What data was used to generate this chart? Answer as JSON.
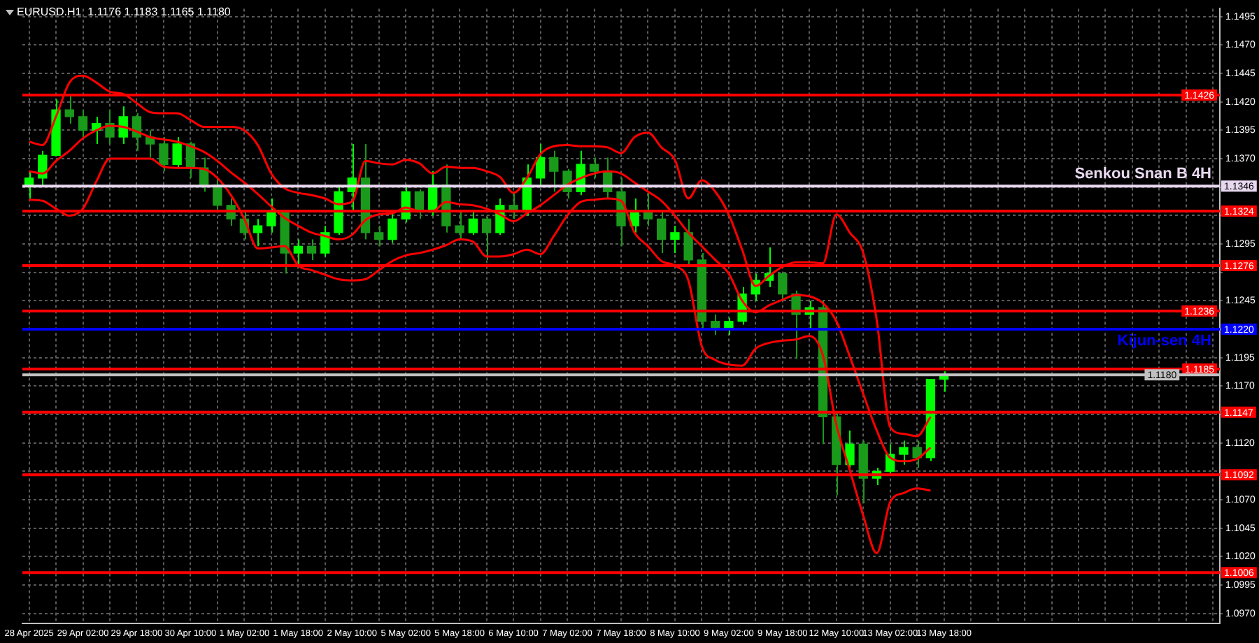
{
  "chart_data": {
    "type": "candlestick",
    "title": "EURUSD.H1  1.1176 1.1183 1.1165 1.1180",
    "colors": [
      "#00ff00",
      "#00ff00",
      "#00ff00",
      "#1a9a1a",
      "#1a9a1a",
      "#00ff00",
      "#1a9a1a",
      "#00ff00",
      "#1a9a1a",
      "#1a9a1a",
      "#1a9a1a",
      "#00ff00",
      "#1a9a1a",
      "#1a9a1a",
      "#1a9a1a",
      "#1a9a1a",
      "#1a9a1a",
      "#00ff00",
      "#00ff00",
      "#1a9a1a",
      "#00ff00",
      "#1a9a1a",
      "#00ff00",
      "#00ff00",
      "#00ff00",
      "#1a9a1a",
      "#1a9a1a",
      "#00ff00",
      "#00ff00",
      "#1a9a1a",
      "#00ff00",
      "#1a9a1a",
      "#1a9a1a",
      "#00ff00",
      "#1a9a1a",
      "#00ff00",
      "#1a9a1a",
      "#00ff00",
      "#00ff00",
      "#1a9a1a",
      "#1a9a1a",
      "#00ff00",
      "#1a9a1a",
      "#1a9a1a",
      "#1a9a1a",
      "#00ff00",
      "#1a9a1a",
      "#1a9a1a",
      "#00ff00",
      "#1a9a1a",
      "#1a9a1a",
      "#1a9a1a",
      "#00ff00",
      "#00ff00",
      "#00ff00",
      "#00ff00",
      "#1a9a1a",
      "#1a9a1a",
      "#00ff00",
      "#1a9a1a",
      "#1a9a1a",
      "#00ff00",
      "#1a9a1a",
      "#00ff00",
      "#00ff00",
      "#00ff00",
      "#1a9a1a",
      "#00ff00",
      "#00ff00",
      null,
      null,
      null,
      null,
      null,
      null,
      null,
      null,
      null,
      null,
      null,
      null,
      null,
      null,
      null,
      null,
      null,
      null,
      null,
      null
    ],
    "categories": [
      "28 Apr 2025",
      null,
      null,
      null,
      "29 Apr 02:00",
      null,
      null,
      null,
      "29 Apr 18:00",
      null,
      null,
      null,
      "30 Apr 10:00",
      null,
      null,
      null,
      "1 May 02:00",
      null,
      null,
      null,
      "1 May 18:00",
      null,
      null,
      null,
      "2 May 10:00",
      null,
      null,
      null,
      "5 May 02:00",
      null,
      null,
      null,
      "5 May 18:00",
      null,
      null,
      null,
      "6 May 10:00",
      null,
      null,
      null,
      "7 May 02:00",
      null,
      null,
      null,
      "7 May 18:00",
      null,
      null,
      null,
      "8 May 10:00",
      null,
      null,
      null,
      "9 May 02:00",
      null,
      null,
      null,
      "9 May 18:00",
      null,
      null,
      null,
      "12 May 10:00",
      null,
      null,
      null,
      "13 May 02:00",
      null,
      null,
      null,
      "13 May 18:00",
      null,
      null,
      null,
      null,
      null,
      null,
      null,
      null,
      null,
      null,
      null,
      null,
      null,
      null,
      null,
      null,
      null,
      null,
      null,
      null
    ],
    "ohlc": [
      [
        1.1347,
        1.1359,
        1.1335,
        1.1353
      ],
      [
        1.1353,
        1.1377,
        1.1347,
        1.1373
      ],
      [
        1.1373,
        1.1422,
        1.1373,
        1.1413
      ],
      [
        1.1413,
        1.1425,
        1.1401,
        1.1407
      ],
      [
        1.1407,
        1.1413,
        1.1389,
        1.1395
      ],
      [
        1.1395,
        1.1407,
        1.1383,
        1.1401
      ],
      [
        1.1401,
        1.1413,
        1.1383,
        1.1389
      ],
      [
        1.1389,
        1.1416,
        1.1383,
        1.1407
      ],
      [
        1.1407,
        1.141,
        1.1377,
        1.1389
      ],
      [
        1.1389,
        1.1395,
        1.1371,
        1.1383
      ],
      [
        1.1383,
        1.1389,
        1.1359,
        1.1365
      ],
      [
        1.1365,
        1.1389,
        1.1362,
        1.1383
      ],
      [
        1.1383,
        1.1385,
        1.1353,
        1.1362
      ],
      [
        1.1362,
        1.1371,
        1.1341,
        1.1347
      ],
      [
        1.1347,
        1.1353,
        1.1323,
        1.1329
      ],
      [
        1.1329,
        1.1335,
        1.1311,
        1.1317
      ],
      [
        1.1317,
        1.1323,
        1.1299,
        1.1305
      ],
      [
        1.1305,
        1.1317,
        1.1293,
        1.1311
      ],
      [
        1.1311,
        1.1335,
        1.1305,
        1.1323
      ],
      [
        1.1323,
        1.1325,
        1.1269,
        1.1287
      ],
      [
        1.1287,
        1.1299,
        1.1275,
        1.1293
      ],
      [
        1.1293,
        1.1299,
        1.1281,
        1.1287
      ],
      [
        1.1287,
        1.1311,
        1.1284,
        1.1305
      ],
      [
        1.1305,
        1.1347,
        1.1303,
        1.1341
      ],
      [
        1.1341,
        1.1383,
        1.1323,
        1.1353
      ],
      [
        1.1353,
        1.1383,
        1.1299,
        1.1305
      ],
      [
        1.1305,
        1.1311,
        1.1293,
        1.1299
      ],
      [
        1.1299,
        1.1323,
        1.1296,
        1.1317
      ],
      [
        1.1317,
        1.1347,
        1.1314,
        1.1341
      ],
      [
        1.1341,
        1.1343,
        1.1317,
        1.1323
      ],
      [
        1.1323,
        1.1359,
        1.132,
        1.1347
      ],
      [
        1.1347,
        1.1365,
        1.1305,
        1.1311
      ],
      [
        1.1311,
        1.1323,
        1.1299,
        1.1305
      ],
      [
        1.1305,
        1.1323,
        1.1303,
        1.1317
      ],
      [
        1.1317,
        1.1319,
        1.1281,
        1.1305
      ],
      [
        1.1305,
        1.1335,
        1.1303,
        1.1329
      ],
      [
        1.1329,
        1.1341,
        1.1317,
        1.1323
      ],
      [
        1.1323,
        1.1365,
        1.132,
        1.1353
      ],
      [
        1.1353,
        1.1383,
        1.1347,
        1.1371
      ],
      [
        1.1371,
        1.1377,
        1.1341,
        1.1359
      ],
      [
        1.1359,
        1.1361,
        1.1335,
        1.1341
      ],
      [
        1.1341,
        1.1377,
        1.1338,
        1.1365
      ],
      [
        1.1365,
        1.1371,
        1.1353,
        1.1359
      ],
      [
        1.1359,
        1.1371,
        1.1335,
        1.1341
      ],
      [
        1.1341,
        1.1353,
        1.1293,
        1.1311
      ],
      [
        1.1311,
        1.1335,
        1.1305,
        1.1323
      ],
      [
        1.1323,
        1.1341,
        1.1311,
        1.1317
      ],
      [
        1.1317,
        1.1323,
        1.1287,
        1.1299
      ],
      [
        1.1299,
        1.1311,
        1.1287,
        1.1305
      ],
      [
        1.1305,
        1.1317,
        1.1275,
        1.1281
      ],
      [
        1.1281,
        1.1287,
        1.1221,
        1.1227
      ],
      [
        1.1227,
        1.1233,
        1.1215,
        1.1221
      ],
      [
        1.1221,
        1.123,
        1.1215,
        1.1227
      ],
      [
        1.1227,
        1.1257,
        1.1224,
        1.1251
      ],
      [
        1.1251,
        1.1269,
        1.1245,
        1.1263
      ],
      [
        1.1263,
        1.1292,
        1.1257,
        1.1269
      ],
      [
        1.1269,
        1.127,
        1.1245,
        1.1251
      ],
      [
        1.1251,
        1.1254,
        1.1194,
        1.1233
      ],
      [
        1.1233,
        1.1245,
        1.1221,
        1.1239
      ],
      [
        1.1239,
        1.1245,
        1.1119,
        1.1143
      ],
      [
        1.1143,
        1.1146,
        1.1074,
        1.1101
      ],
      [
        1.1101,
        1.1131,
        1.1098,
        1.1119
      ],
      [
        1.1119,
        1.1122,
        1.1067,
        1.1089
      ],
      [
        1.1089,
        1.1098,
        1.1083,
        1.1095
      ],
      [
        1.1095,
        1.1119,
        1.1093,
        1.111
      ],
      [
        1.111,
        1.1122,
        1.1101,
        1.1116
      ],
      [
        1.1116,
        1.1122,
        1.1098,
        1.1107
      ],
      [
        1.1107,
        1.1176,
        1.1104,
        1.1176
      ],
      [
        1.1176,
        1.1183,
        1.1165,
        1.118
      ],
      null,
      null,
      null,
      null,
      null,
      null,
      null,
      null,
      null,
      null,
      null,
      null,
      null,
      null,
      null,
      null,
      null,
      null,
      null,
      null
    ],
    "series": [
      {
        "type": "line",
        "color": "#ff0000",
        "values": [
          1.1385,
          1.1382,
          1.1407,
          1.1437,
          1.1443,
          1.1437,
          1.1429,
          1.1427,
          1.1419,
          1.1411,
          1.141,
          1.141,
          1.1404,
          1.1398,
          1.1398,
          1.1398,
          1.1395,
          1.1382,
          1.1357,
          1.1344,
          1.134,
          1.1338,
          1.1335,
          1.133,
          1.1332,
          1.1368,
          1.1366,
          1.1365,
          1.1369,
          1.1366,
          1.1357,
          1.1363,
          1.1362,
          1.1362,
          1.1359,
          1.1354,
          1.134,
          1.1353,
          1.1374,
          1.1381,
          1.1382,
          1.1381,
          1.1381,
          1.138,
          1.1375,
          1.1389,
          1.1393,
          1.138,
          1.1369,
          1.1335,
          1.1351,
          1.1341,
          1.1321,
          1.129,
          1.1258,
          1.1267,
          1.1275,
          1.1279,
          1.1279,
          1.1278,
          1.1321,
          1.1305,
          1.1287,
          1.1228,
          1.1134,
          1.1128,
          1.1126,
          1.1143,
          null,
          null,
          null,
          null,
          null,
          null,
          null,
          null,
          null,
          null,
          null,
          null,
          null,
          null,
          null,
          null,
          null,
          null,
          null,
          null,
          null
        ]
      },
      {
        "type": "line",
        "color": "#ff0000",
        "values": [
          1.1359,
          1.1357,
          1.1368,
          1.1377,
          1.1388,
          1.1395,
          1.1399,
          1.1398,
          1.1394,
          1.1389,
          1.1387,
          1.1385,
          1.1381,
          1.1376,
          1.1368,
          1.1358,
          1.1349,
          1.1339,
          1.1328,
          1.1318,
          1.1311,
          1.1305,
          1.1302,
          1.1299,
          1.1303,
          1.1316,
          1.1321,
          1.1322,
          1.1327,
          1.1324,
          1.1324,
          1.1332,
          1.133,
          1.1329,
          1.1326,
          1.1321,
          1.1315,
          1.1322,
          1.1329,
          1.1338,
          1.1347,
          1.1353,
          1.1357,
          1.1359,
          1.1357,
          1.1349,
          1.1341,
          1.1333,
          1.132,
          1.1305,
          1.1293,
          1.1281,
          1.1269,
          1.1245,
          1.1235,
          1.1241,
          1.1246,
          1.125,
          1.1249,
          1.1243,
          1.1227,
          1.1196,
          1.1163,
          1.1131,
          1.1107,
          1.1104,
          1.1106,
          1.1116,
          null,
          null,
          null,
          null,
          null,
          null,
          null,
          null,
          null,
          null,
          null,
          null,
          null,
          null,
          null,
          null,
          null,
          null,
          null,
          null,
          null
        ]
      },
      {
        "type": "line",
        "color": "#ff0000",
        "values": [
          1.1334,
          1.1333,
          1.1326,
          1.132,
          1.1326,
          1.135,
          1.137,
          1.137,
          1.137,
          1.137,
          1.1363,
          1.1362,
          1.1362,
          1.1361,
          1.1353,
          1.1338,
          1.1317,
          1.1291,
          1.1292,
          1.1293,
          1.1276,
          1.1272,
          1.1268,
          1.1264,
          1.1263,
          1.1264,
          1.1272,
          1.128,
          1.1285,
          1.1287,
          1.129,
          1.1294,
          1.1299,
          1.1297,
          1.1284,
          1.1284,
          1.1286,
          1.129,
          1.1286,
          1.1302,
          1.132,
          1.1332,
          1.1334,
          1.1335,
          1.1333,
          1.1305,
          1.1293,
          1.128,
          1.1276,
          1.1263,
          1.1205,
          1.1193,
          1.1189,
          1.1188,
          1.1203,
          1.1208,
          1.121,
          1.1211,
          1.1214,
          1.1197,
          1.1136,
          1.1096,
          1.1056,
          1.1023,
          1.1068,
          1.1076,
          1.108,
          1.1078,
          null,
          null,
          null,
          null,
          null,
          null,
          null,
          null,
          null,
          null,
          null,
          null,
          null,
          null,
          null,
          null,
          null,
          null,
          null,
          null,
          null
        ]
      }
    ],
    "ylim": [
      1.0961,
      1.1502
    ],
    "yticks": [
      1.1495,
      {
        "value": 1.147,
        "label": "1.1470"
      },
      1.1445,
      {
        "value": 1.142,
        "label": "1.1420"
      },
      1.1395,
      {
        "value": 1.137,
        "label": "1.1370"
      },
      {
        "value": 1.1345,
        "label": null
      },
      {
        "value": 1.132,
        "label": null
      },
      1.1295,
      {
        "value": 1.127,
        "label": null
      },
      1.1245,
      {
        "value": 1.122,
        "label": null
      },
      1.1195,
      {
        "value": 1.117,
        "label": "1.1170"
      },
      {
        "value": 1.1145,
        "label": null
      },
      {
        "value": 1.112,
        "label": "1.1120"
      },
      {
        "value": 1.1095,
        "label": null
      },
      {
        "value": 1.107,
        "label": "1.1070"
      },
      1.1045,
      {
        "value": 1.102,
        "label": "1.1020"
      },
      1.0995,
      {
        "value": 1.097,
        "label": "1.0970"
      }
    ],
    "ref_lines": [
      {
        "axis": "y",
        "value": 1.1426,
        "color": "#ff0000",
        "label": "1.1426"
      },
      {
        "axis": "y",
        "value": 1.1346,
        "color": "#e8d8f0",
        "label": "1.1346"
      },
      {
        "axis": "y",
        "value": 1.1324,
        "color": "#ff0000",
        "label": "1.1324"
      },
      {
        "axis": "y",
        "value": 1.1276,
        "color": "#ff0000",
        "label": "1.1276"
      },
      {
        "axis": "y",
        "value": 1.1236,
        "color": "#ff0000",
        "label": "1.1236"
      },
      {
        "axis": "y",
        "value": 1.122,
        "color": "#0000ff",
        "label": "1.1220"
      },
      {
        "axis": "y",
        "value": 1.1185,
        "color": "#ff0000",
        "label": "1.1185"
      },
      {
        "axis": "y",
        "value": 1.118,
        "color": "#c0c0c0",
        "label": "1.1180"
      },
      {
        "axis": "y",
        "value": 1.1147,
        "color": "#ff0000",
        "label": "1.1147"
      },
      {
        "axis": "y",
        "value": 1.1092,
        "color": "#ff0000",
        "label": "1.1092"
      },
      {
        "axis": "y",
        "value": 1.1006,
        "color": "#ff0000",
        "label": "1.1006"
      }
    ],
    "annotations": [
      {
        "text": "Senkou Snan B 4H",
        "y": 1.1346
      },
      {
        "text": "Kijun-sen 4H",
        "y": 1.122
      }
    ],
    "grid": true,
    "legend": false,
    "marker": "none"
  }
}
